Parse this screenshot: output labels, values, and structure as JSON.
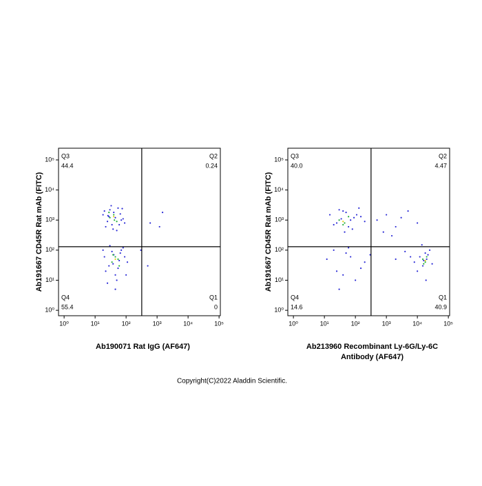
{
  "chart_data": [
    {
      "type": "scatter",
      "log_scale": true,
      "xlabel": [
        "Ab190071 Rat IgG (AF647)"
      ],
      "ylabel": "Ab191667 CD45R Rat mAb (FITC)",
      "xlim": [
        0.66,
        110000
      ],
      "ylim": [
        0.66,
        245000
      ],
      "xticks": [
        {
          "value": 1,
          "label": "10⁰"
        },
        {
          "value": 10,
          "label": "10¹"
        },
        {
          "value": 100,
          "label": "10²"
        },
        {
          "value": 1000,
          "label": "10³"
        },
        {
          "value": 10000,
          "label": "10⁴"
        },
        {
          "value": 100000,
          "label": "10⁵"
        }
      ],
      "yticks": [
        {
          "value": 1,
          "label": "10⁰"
        },
        {
          "value": 10,
          "label": "10¹"
        },
        {
          "value": 100,
          "label": "10²"
        },
        {
          "value": 1000,
          "label": "10³"
        },
        {
          "value": 10000,
          "label": "10⁴"
        },
        {
          "value": 100000,
          "label": "10⁵"
        }
      ],
      "gates": {
        "x": 320,
        "y": 130
      },
      "quadrants": [
        "Q3",
        "Q2",
        "Q4",
        "Q1"
      ],
      "values": [
        44.4,
        0.24,
        55.4,
        0
      ],
      "value_labels": [
        "44.4",
        "0.24",
        "55.4",
        "0"
      ],
      "series": [
        {
          "color": "#2b2bd6",
          "x": [
            18,
            25,
            30,
            35,
            40,
            45,
            55,
            70,
            90,
            22,
            28,
            33,
            50,
            65,
            80,
            20,
            38,
            60,
            75,
            26,
            20,
            28,
            35,
            45,
            60,
            80,
            110,
            25,
            40,
            55,
            70,
            30,
            50,
            90,
            22,
            65,
            38,
            100,
            18,
            45,
            600,
            300,
            1500,
            1200,
            500
          ],
          "y": [
            1500,
            900,
            2200,
            700,
            1800,
            1200,
            2500,
            1000,
            800,
            600,
            1300,
            3000,
            450,
            1600,
            1100,
            2000,
            500,
            700,
            2400,
            1400,
            60,
            30,
            90,
            15,
            45,
            120,
            40,
            8,
            70,
            25,
            100,
            140,
            10,
            60,
            20,
            80,
            35,
            15,
            100,
            5,
            800,
            100,
            1800,
            600,
            30
          ]
        },
        {
          "color": "#1fae3a",
          "x": [
            30,
            40,
            50,
            35,
            45,
            60,
            28,
            38,
            42,
            55
          ],
          "y": [
            1200,
            1500,
            900,
            40,
            60,
            30,
            1800,
            70,
            1000,
            50
          ]
        },
        {
          "color": "#e6d01c",
          "x": [
            40,
            45
          ],
          "y": [
            1300,
            50
          ]
        }
      ]
    },
    {
      "type": "scatter",
      "log_scale": true,
      "xlabel": [
        "Ab213960 Recombinant Ly-6G/Ly-6C",
        "Antibody (AF647)"
      ],
      "ylabel": "Ab191667 CD45R Rat mAb (FITC)",
      "xlim": [
        0.66,
        110000
      ],
      "ylim": [
        0.66,
        245000
      ],
      "xticks": [
        {
          "value": 1,
          "label": "10⁰"
        },
        {
          "value": 10,
          "label": "10¹"
        },
        {
          "value": 100,
          "label": "10²"
        },
        {
          "value": 1000,
          "label": "10³"
        },
        {
          "value": 10000,
          "label": "10⁴"
        },
        {
          "value": 100000,
          "label": "10⁵"
        }
      ],
      "yticks": [
        {
          "value": 1,
          "label": "10⁰"
        },
        {
          "value": 10,
          "label": "10¹"
        },
        {
          "value": 100,
          "label": "10²"
        },
        {
          "value": 1000,
          "label": "10³"
        },
        {
          "value": 10000,
          "label": "10⁴"
        },
        {
          "value": 100000,
          "label": "10⁵"
        }
      ],
      "gates": {
        "x": 320,
        "y": 130
      },
      "quadrants": [
        "Q3",
        "Q2",
        "Q4",
        "Q1"
      ],
      "values": [
        40.0,
        4.47,
        14.6,
        40.9
      ],
      "value_labels": [
        "40.0",
        "4.47",
        "14.6",
        "40.9"
      ],
      "series": [
        {
          "color": "#2b2bd6",
          "x": [
            15,
            25,
            40,
            60,
            90,
            130,
            200,
            20,
            35,
            50,
            80,
            110,
            30,
            70,
            150,
            45,
            500,
            1000,
            2000,
            5000,
            800,
            3000,
            10000,
            1500,
            12,
            25,
            50,
            100,
            200,
            30,
            70,
            150,
            20,
            60,
            40,
            300,
            8000,
            12000,
            15000,
            18000,
            20000,
            25000,
            10000,
            16000,
            22000,
            14000,
            30000,
            6000,
            19000,
            2000,
            4000
          ],
          "y": [
            1500,
            800,
            2000,
            600,
            1200,
            2500,
            900,
            700,
            1100,
            1800,
            500,
            1500,
            2200,
            1000,
            1300,
            400,
            1000,
            1500,
            600,
            2000,
            400,
            1200,
            800,
            300,
            50,
            20,
            80,
            10,
            40,
            5,
            60,
            25,
            100,
            120,
            15,
            70,
            40,
            60,
            30,
            80,
            50,
            100,
            20,
            45,
            70,
            150,
            35,
            60,
            10,
            50,
            90
          ]
        },
        {
          "color": "#1fae3a",
          "x": [
            30,
            45,
            60,
            40,
            15000,
            18000,
            20000,
            16000
          ],
          "y": [
            1000,
            800,
            1300,
            700,
            50,
            40,
            60,
            35
          ]
        },
        {
          "color": "#e6d01c",
          "x": [
            40,
            18000
          ],
          "y": [
            900,
            45
          ]
        }
      ]
    }
  ],
  "footer": "Copyright(C)2022 Aladdin Scientific."
}
